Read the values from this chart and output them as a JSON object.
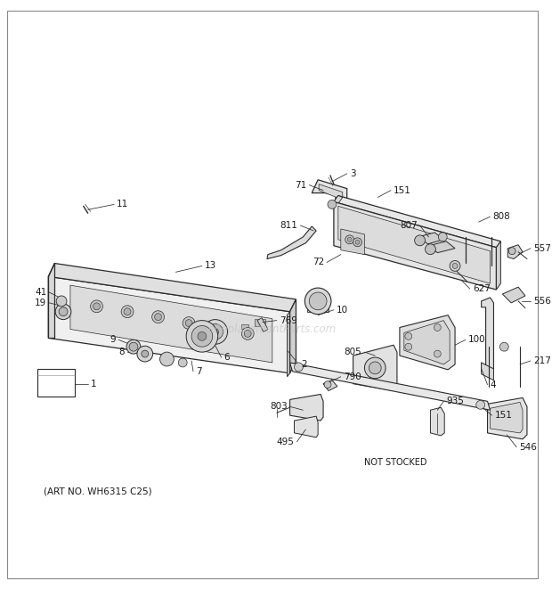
{
  "bg_color": "#ffffff",
  "art_no": "(ART NO. WH6315 C25)",
  "watermark": "eReplacementParts.com",
  "not_stocked": "NOT STOCKED",
  "line_color": "#2a2a2a",
  "fill_light": "#e8e8e8",
  "fill_mid": "#d0d0d0",
  "fill_dark": "#b0b0b0"
}
